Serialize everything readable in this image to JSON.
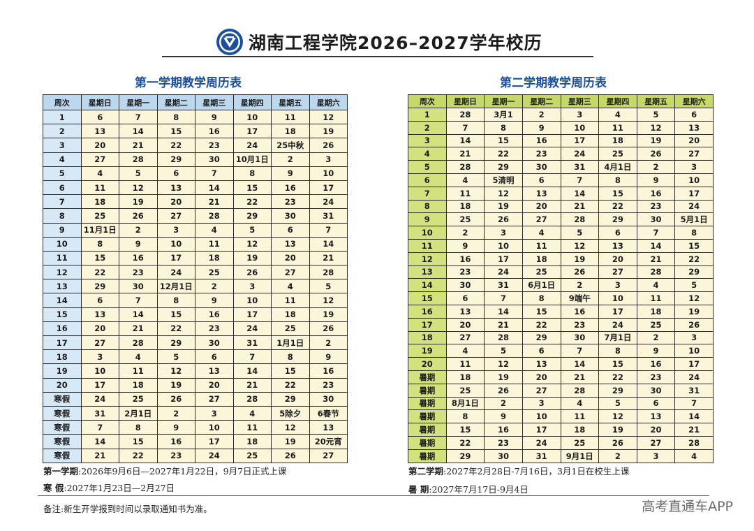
{
  "title": "湖南工程学院2026–2027学年校历",
  "sem1": {
    "heading": "第一学期教学周历表",
    "columns": [
      "周次",
      "星期日",
      "星期一",
      "星期二",
      "星期三",
      "星期四",
      "星期五",
      "星期六"
    ],
    "rows": [
      [
        "1",
        "6",
        "7",
        "8",
        "9",
        "10",
        "11",
        "12"
      ],
      [
        "2",
        "13",
        "14",
        "15",
        "16",
        "17",
        "18",
        "19"
      ],
      [
        "3",
        "20",
        "21",
        "22",
        "23",
        "24",
        "25中秋",
        "26"
      ],
      [
        "4",
        "27",
        "28",
        "29",
        "30",
        "10月1日",
        "2",
        "3"
      ],
      [
        "5",
        "4",
        "5",
        "6",
        "7",
        "8",
        "9",
        "10"
      ],
      [
        "6",
        "11",
        "12",
        "13",
        "14",
        "15",
        "16",
        "17"
      ],
      [
        "7",
        "18",
        "19",
        "20",
        "21",
        "22",
        "23",
        "24"
      ],
      [
        "8",
        "25",
        "26",
        "27",
        "28",
        "29",
        "30",
        "31"
      ],
      [
        "9",
        "11月1日",
        "2",
        "3",
        "4",
        "5",
        "6",
        "7"
      ],
      [
        "10",
        "8",
        "9",
        "10",
        "11",
        "12",
        "13",
        "14"
      ],
      [
        "11",
        "15",
        "16",
        "17",
        "18",
        "19",
        "20",
        "21"
      ],
      [
        "12",
        "22",
        "23",
        "24",
        "25",
        "26",
        "27",
        "28"
      ],
      [
        "13",
        "29",
        "30",
        "12月1日",
        "2",
        "3",
        "4",
        "5"
      ],
      [
        "14",
        "6",
        "7",
        "8",
        "9",
        "10",
        "11",
        "12"
      ],
      [
        "15",
        "13",
        "14",
        "15",
        "16",
        "17",
        "18",
        "19"
      ],
      [
        "16",
        "20",
        "21",
        "22",
        "23",
        "24",
        "25",
        "26"
      ],
      [
        "17",
        "27",
        "28",
        "29",
        "30",
        "31",
        "1月1日",
        "2"
      ],
      [
        "18",
        "3",
        "4",
        "5",
        "6",
        "7",
        "8",
        "9"
      ],
      [
        "19",
        "10",
        "11",
        "12",
        "13",
        "14",
        "15",
        "16"
      ],
      [
        "20",
        "17",
        "18",
        "19",
        "20",
        "21",
        "22",
        "23"
      ],
      [
        "寒假",
        "24",
        "25",
        "26",
        "27",
        "28",
        "29",
        "30"
      ],
      [
        "寒假",
        "31",
        "2月1日",
        "2",
        "3",
        "4",
        "5除夕",
        "6春节"
      ],
      [
        "寒假",
        "7",
        "8",
        "9",
        "10",
        "11",
        "12",
        "13"
      ],
      [
        "寒假",
        "14",
        "15",
        "16",
        "17",
        "18",
        "19",
        "20元宵"
      ],
      [
        "寒假",
        "21",
        "22",
        "23",
        "24",
        "25",
        "26",
        "27"
      ]
    ],
    "red": [
      [
        0,
        1
      ],
      [
        0,
        7
      ],
      [
        1,
        1
      ],
      [
        1,
        7
      ],
      [
        2,
        1
      ],
      [
        2,
        6
      ],
      [
        2,
        7
      ],
      [
        3,
        1
      ],
      [
        3,
        5
      ],
      [
        3,
        6
      ],
      [
        3,
        7
      ],
      [
        4,
        1
      ],
      [
        4,
        7
      ],
      [
        5,
        1
      ],
      [
        5,
        7
      ],
      [
        6,
        1
      ],
      [
        6,
        7
      ],
      [
        7,
        1
      ],
      [
        7,
        7
      ],
      [
        8,
        1
      ],
      [
        8,
        7
      ],
      [
        9,
        1
      ],
      [
        9,
        7
      ],
      [
        10,
        1
      ],
      [
        10,
        7
      ],
      [
        11,
        1
      ],
      [
        11,
        7
      ],
      [
        12,
        1
      ],
      [
        12,
        3
      ],
      [
        12,
        7
      ],
      [
        13,
        1
      ],
      [
        13,
        7
      ],
      [
        14,
        1
      ],
      [
        14,
        7
      ],
      [
        15,
        1
      ],
      [
        15,
        7
      ],
      [
        16,
        1
      ],
      [
        16,
        6
      ],
      [
        16,
        7
      ],
      [
        17,
        1
      ],
      [
        17,
        7
      ],
      [
        18,
        1
      ],
      [
        18,
        7
      ],
      [
        19,
        1
      ],
      [
        19,
        7
      ],
      [
        20,
        0
      ],
      [
        20,
        1
      ],
      [
        20,
        2
      ],
      [
        20,
        3
      ],
      [
        20,
        4
      ],
      [
        20,
        5
      ],
      [
        20,
        6
      ],
      [
        20,
        7
      ],
      [
        21,
        0
      ],
      [
        21,
        1
      ],
      [
        21,
        2
      ],
      [
        21,
        3
      ],
      [
        21,
        4
      ],
      [
        21,
        5
      ],
      [
        21,
        6
      ],
      [
        21,
        7
      ],
      [
        22,
        0
      ],
      [
        22,
        1
      ],
      [
        22,
        2
      ],
      [
        22,
        3
      ],
      [
        22,
        4
      ],
      [
        22,
        5
      ],
      [
        22,
        6
      ],
      [
        22,
        7
      ],
      [
        23,
        0
      ],
      [
        23,
        1
      ],
      [
        23,
        2
      ],
      [
        23,
        3
      ],
      [
        23,
        4
      ],
      [
        23,
        5
      ],
      [
        23,
        6
      ],
      [
        23,
        7
      ],
      [
        24,
        0
      ],
      [
        24,
        1
      ],
      [
        24,
        2
      ],
      [
        24,
        3
      ],
      [
        24,
        4
      ],
      [
        24,
        5
      ],
      [
        24,
        6
      ],
      [
        24,
        7
      ]
    ],
    "term_label": "第一学期",
    "term_text": ":2026年9月6日—2027年1月22日，9月7日正式上课",
    "vac_label": "寒    假",
    "vac_text": ":2027年1月23日—2月27日"
  },
  "sem2": {
    "heading": "第二学期教学周历表",
    "columns": [
      "周次",
      "星期日",
      "星期一",
      "星期二",
      "星期三",
      "星期四",
      "星期五",
      "星期六"
    ],
    "rows": [
      [
        "1",
        "28",
        "3月1",
        "2",
        "3",
        "4",
        "5",
        "6"
      ],
      [
        "2",
        "7",
        "8",
        "9",
        "10",
        "11",
        "12",
        "13"
      ],
      [
        "3",
        "14",
        "15",
        "16",
        "17",
        "18",
        "19",
        "20"
      ],
      [
        "4",
        "21",
        "22",
        "23",
        "24",
        "25",
        "26",
        "27"
      ],
      [
        "5",
        "28",
        "29",
        "30",
        "31",
        "4月1日",
        "2",
        "3"
      ],
      [
        "6",
        "4",
        "5清明",
        "6",
        "7",
        "8",
        "9",
        "10"
      ],
      [
        "7",
        "11",
        "12",
        "13",
        "14",
        "15",
        "16",
        "17"
      ],
      [
        "8",
        "18",
        "19",
        "20",
        "21",
        "22",
        "23",
        "24"
      ],
      [
        "9",
        "25",
        "26",
        "27",
        "28",
        "29",
        "30",
        "5月1日"
      ],
      [
        "10",
        "2",
        "3",
        "4",
        "5",
        "6",
        "7",
        "8"
      ],
      [
        "11",
        "9",
        "10",
        "11",
        "12",
        "13",
        "14",
        "15"
      ],
      [
        "12",
        "16",
        "17",
        "18",
        "19",
        "20",
        "21",
        "22"
      ],
      [
        "13",
        "23",
        "24",
        "25",
        "26",
        "27",
        "28",
        "29"
      ],
      [
        "14",
        "30",
        "31",
        "6月1日",
        "2",
        "3",
        "4",
        "5"
      ],
      [
        "15",
        "6",
        "7",
        "8",
        "9端午",
        "10",
        "11",
        "12"
      ],
      [
        "16",
        "13",
        "14",
        "15",
        "16",
        "17",
        "18",
        "19"
      ],
      [
        "17",
        "20",
        "21",
        "22",
        "23",
        "24",
        "25",
        "26"
      ],
      [
        "18",
        "27",
        "28",
        "29",
        "30",
        "7月1日",
        "2",
        "3"
      ],
      [
        "19",
        "4",
        "5",
        "6",
        "7",
        "8",
        "9",
        "10"
      ],
      [
        "20",
        "11",
        "12",
        "13",
        "14",
        "15",
        "16",
        "17"
      ],
      [
        "暑期",
        "18",
        "19",
        "20",
        "21",
        "22",
        "23",
        "24"
      ],
      [
        "暑期",
        "25",
        "26",
        "27",
        "28",
        "29",
        "30",
        "31"
      ],
      [
        "暑期",
        "8月1日",
        "2",
        "3",
        "4",
        "5",
        "6",
        "7"
      ],
      [
        "暑期",
        "8",
        "9",
        "10",
        "11",
        "12",
        "13",
        "14"
      ],
      [
        "暑期",
        "15",
        "16",
        "17",
        "18",
        "19",
        "20",
        "21"
      ],
      [
        "暑期",
        "22",
        "23",
        "24",
        "25",
        "26",
        "27",
        "28"
      ],
      [
        "暑期",
        "29",
        "30",
        "31",
        "9月1日",
        "2",
        "3",
        "4"
      ]
    ],
    "red": [
      [
        0,
        1
      ],
      [
        0,
        7
      ],
      [
        1,
        1
      ],
      [
        1,
        7
      ],
      [
        2,
        1
      ],
      [
        2,
        7
      ],
      [
        3,
        1
      ],
      [
        3,
        7
      ],
      [
        4,
        1
      ],
      [
        4,
        5
      ],
      [
        4,
        7
      ],
      [
        5,
        1
      ],
      [
        5,
        2
      ],
      [
        5,
        7
      ],
      [
        6,
        1
      ],
      [
        6,
        7
      ],
      [
        7,
        1
      ],
      [
        7,
        7
      ],
      [
        8,
        1
      ],
      [
        8,
        7
      ],
      [
        9,
        1
      ],
      [
        9,
        7
      ],
      [
        10,
        1
      ],
      [
        10,
        7
      ],
      [
        11,
        1
      ],
      [
        11,
        7
      ],
      [
        12,
        1
      ],
      [
        12,
        7
      ],
      [
        13,
        1
      ],
      [
        13,
        3
      ],
      [
        13,
        7
      ],
      [
        14,
        1
      ],
      [
        14,
        4
      ],
      [
        14,
        7
      ],
      [
        15,
        1
      ],
      [
        15,
        7
      ],
      [
        16,
        1
      ],
      [
        16,
        7
      ],
      [
        17,
        1
      ],
      [
        17,
        5
      ],
      [
        17,
        7
      ],
      [
        18,
        1
      ],
      [
        18,
        7
      ],
      [
        19,
        1
      ],
      [
        19,
        7
      ],
      [
        20,
        0
      ],
      [
        20,
        1
      ],
      [
        20,
        2
      ],
      [
        20,
        3
      ],
      [
        20,
        4
      ],
      [
        20,
        5
      ],
      [
        20,
        6
      ],
      [
        20,
        7
      ],
      [
        21,
        0
      ],
      [
        21,
        1
      ],
      [
        21,
        2
      ],
      [
        21,
        3
      ],
      [
        21,
        4
      ],
      [
        21,
        5
      ],
      [
        21,
        6
      ],
      [
        21,
        7
      ],
      [
        22,
        0
      ],
      [
        22,
        1
      ],
      [
        22,
        2
      ],
      [
        22,
        3
      ],
      [
        22,
        4
      ],
      [
        22,
        5
      ],
      [
        22,
        6
      ],
      [
        22,
        7
      ],
      [
        23,
        0
      ],
      [
        23,
        1
      ],
      [
        23,
        2
      ],
      [
        23,
        3
      ],
      [
        23,
        4
      ],
      [
        23,
        5
      ],
      [
        23,
        6
      ],
      [
        23,
        7
      ],
      [
        24,
        0
      ],
      [
        24,
        1
      ],
      [
        24,
        2
      ],
      [
        24,
        3
      ],
      [
        24,
        4
      ],
      [
        24,
        5
      ],
      [
        24,
        6
      ],
      [
        24,
        7
      ],
      [
        25,
        0
      ],
      [
        25,
        1
      ],
      [
        25,
        2
      ],
      [
        25,
        3
      ],
      [
        25,
        4
      ],
      [
        25,
        5
      ],
      [
        25,
        6
      ],
      [
        25,
        7
      ],
      [
        26,
        0
      ],
      [
        26,
        1
      ],
      [
        26,
        2
      ],
      [
        26,
        3
      ],
      [
        26,
        4
      ],
      [
        26,
        5
      ],
      [
        26,
        6
      ],
      [
        26,
        7
      ]
    ],
    "term_label": "第二学期",
    "term_text": ":2027年2月28日-7月16日，3月1日在校生上课",
    "vac_label": "暑    期",
    "vac_text": ":2027年7月17日-9月4日"
  },
  "footnote": "备注:新生开学报到时间以录取通知书为准。",
  "watermark": "高考直通车APP",
  "colors": {
    "holiday_red": "#d42a2a",
    "heading_blue": "#1c4f9c",
    "sem1_header": "#bcd7ee",
    "sem2_header": "#c6d86a",
    "cell_bg": "#fbf6d9"
  },
  "logo_icon": "university-emblem-icon"
}
